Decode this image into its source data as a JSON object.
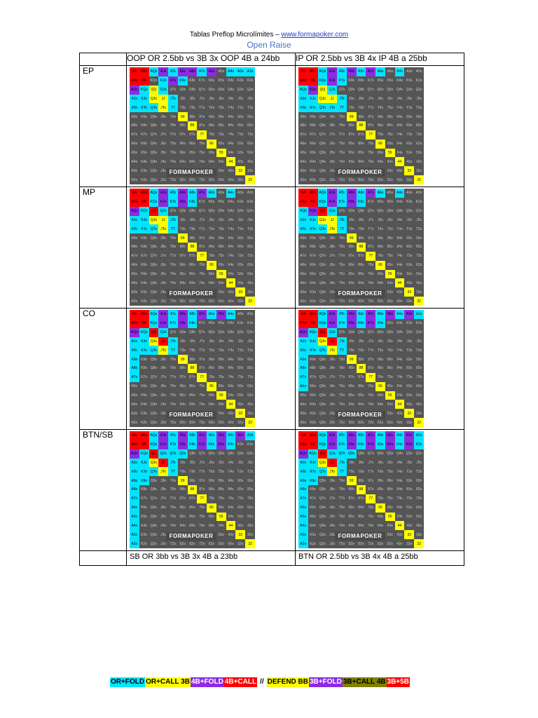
{
  "header": {
    "title": "Tablas Preflop Microlímites – ",
    "link": "www.formapoker.com"
  },
  "subtitle": "Open Raise",
  "columns": [
    "OOP OR 2.5bb vs 3B 3x OOP 4B a 24bb",
    "IP OR 2.5bb vs 3B 4x IP 4B a 25bb"
  ],
  "rows": [
    "EP",
    "MP",
    "CO",
    "BTN/SB"
  ],
  "bottom_captions": [
    "SB OR 3bb vs 3B 3x 4B a 23bb",
    "BTN OR 2.5bb vs 3B 4x 4B a 25bb"
  ],
  "watermark": "FORMAPOKER",
  "legend": [
    {
      "label": "OR+FOLD",
      "bg": "#00e5ff",
      "fg": "#000000"
    },
    {
      "label": "OR+CALL 3B",
      "bg": "#ffff00",
      "fg": "#000000"
    },
    {
      "label": "4B+FOLD",
      "bg": "#8b2be2",
      "fg": "#ffffff"
    },
    {
      "label": "4B+CALL",
      "bg": "#ff0000",
      "fg": "#ffffff"
    },
    {
      "label": "//",
      "bg": "",
      "fg": "#000000"
    },
    {
      "label": "DEFEND BB",
      "bg": "#ffff00",
      "fg": "#000000"
    },
    {
      "label": "3B+FOLD",
      "bg": "#8b2be2",
      "fg": "#ffffff"
    },
    {
      "label": "3B+CALL 4B",
      "bg": "#808000",
      "fg": "#000000"
    },
    {
      "label": "3B+5B",
      "bg": "#ff0000",
      "fg": "#ffffff"
    }
  ],
  "hand_grid": [
    [
      "AA",
      "AKs",
      "AQs",
      "AJs",
      "ATs",
      "A9s",
      "A8s",
      "A7s",
      "A6s",
      "A5s",
      "A4s",
      "A3s",
      "A2s"
    ],
    [
      "AKo",
      "KK",
      "KQs",
      "KJs",
      "KTs",
      "K9s",
      "K8s",
      "K7s",
      "K6s",
      "K5s",
      "K4s",
      "K3s",
      "K2s"
    ],
    [
      "AQo",
      "KQo",
      "QQ",
      "QJs",
      "QTs",
      "Q9s",
      "Q8s",
      "Q7s",
      "Q6s",
      "Q5s",
      "Q4s",
      "Q3s",
      "Q2s"
    ],
    [
      "AJo",
      "KJo",
      "QJo",
      "JJ",
      "JTs",
      "J9s",
      "J8s",
      "J7s",
      "J6s",
      "J5s",
      "J4s",
      "J3s",
      "J2s"
    ],
    [
      "ATo",
      "KTo",
      "QTo",
      "JTo",
      "TT",
      "T9s",
      "T8s",
      "T7s",
      "T6s",
      "T5s",
      "T4s",
      "T3s",
      "T2s"
    ],
    [
      "A9o",
      "K9o",
      "Q9o",
      "J9o",
      "T9o",
      "99",
      "98s",
      "97s",
      "96s",
      "95s",
      "94s",
      "93s",
      "92s"
    ],
    [
      "A8o",
      "K8o",
      "Q8o",
      "J8o",
      "T8o",
      "98o",
      "88",
      "87s",
      "86s",
      "85s",
      "84s",
      "83s",
      "82s"
    ],
    [
      "A7o",
      "K7o",
      "Q7o",
      "J7o",
      "T7o",
      "97o",
      "87o",
      "77",
      "76s",
      "75s",
      "74s",
      "73s",
      "72s"
    ],
    [
      "A6o",
      "K6o",
      "Q6o",
      "J6o",
      "T6o",
      "96o",
      "86o",
      "76o",
      "66",
      "65s",
      "64s",
      "63s",
      "62s"
    ],
    [
      "A5o",
      "K5o",
      "Q5o",
      "J5o",
      "T5o",
      "95o",
      "85o",
      "75o",
      "65o",
      "55",
      "54s",
      "53s",
      "52s"
    ],
    [
      "A4o",
      "K4o",
      "Q4o",
      "J4o",
      "T4o",
      "94o",
      "84o",
      "74o",
      "64o",
      "54o",
      "44",
      "43s",
      "42s"
    ],
    [
      "A3o",
      "K3o",
      "Q3o",
      "J3o",
      "T3o",
      "93o",
      "83o",
      "73o",
      "63o",
      "53o",
      "43o",
      "33",
      "32s"
    ],
    [
      "A2o",
      "K2o",
      "Q2o",
      "J2o",
      "T2o",
      "92o",
      "82o",
      "72o",
      "62o",
      "52o",
      "42o",
      "32o",
      "22"
    ]
  ],
  "charts": [
    [
      "rrcpcppcpbccc",
      "rrbcpcbbbbbbb",
      "pcycbbbbbbbbb",
      "ccyycbbbbbbbb",
      "cccycbbbbbbbb",
      "bbbbbybbbbbbb",
      "bbbbbbybbbbbb",
      "bbbbbbbybbbbb",
      "bbbbbbbbybbbb",
      "bbbbbbbbbybbb",
      "bbbbbbbbbbybb",
      "bbbbbbbbbbbyb",
      "bbbbbbbbbbbby"
    ],
    [
      "rrcpcpcpcbcbb",
      "rrcpcbbbbbbbb",
      "cpycbbbbbbbbb",
      "ccyycbbbbbbbb",
      "cccccbbbbbbbb",
      "bbbbbybbbbbbb",
      "bbbbbbybbbbbb",
      "bbbbbbbybbbbb",
      "bbbbbbbbybbbb",
      "bbbbbbbbbybbb",
      "bbbbbbbbbbybb",
      "bbbbbbbbbbbyb",
      "bbbbbbbbbbbby"
    ],
    [
      "rrcpcpcpcbcbb",
      "rrcpcpcbbbbbb",
      "pcrcbbbbbbbbb",
      "ccyycbbbbbbbb",
      "cccycbbbbbbbb",
      "bbbbbybbbbbbb",
      "bbbbbbybbbbbb",
      "bbbbbbbybbbbb",
      "bbbbbbbbybbbb",
      "bbbbbbbbbybbb",
      "bbbbbbbbbbybb",
      "bbbbbbbbbbbyb",
      "bbbbbbbbbbbby"
    ],
    [
      "rrcpcpcpcbcbb",
      "rrcpcpcbbbbbb",
      "cprcbbbbbbbbb",
      "ccyycbbbbbbbb",
      "cccycbbbbbbbb",
      "bbbbbybbbbbbb",
      "bbbbbbybbbbbb",
      "bbbbbbbybbbbb",
      "bbbbbbbbybbbb",
      "bbbbbbbbbybbb",
      "bbbbbbbbbbybb",
      "bbbbbbbbbbbyb",
      "bbbbbbbbbbbby"
    ],
    [
      "rrcpcpcpcpcbb",
      "rrcpcpcbbbbbb",
      "pcrcbbbbbbbbb",
      "ccyrcbbbbbbbb",
      "cccycbbbbbbbb",
      "cbbbbybbbbbbb",
      "cbbbbbybbbbbb",
      "cbbbbbbybbbbb",
      "bbbbbbbbybbbb",
      "bbbbbbbbbybbb",
      "bbbbbbbbbbybb",
      "bbbbbbbbbbbyb",
      "bbbbbbbbbbbby"
    ],
    [
      "rrcpcpcpcpcpc",
      "rrcpcpcpcbbbb",
      "pcrcbbbbbbbbb",
      "ccyrcbbbbbbbb",
      "cccycbbbbbbbb",
      "cbbbbybbbbbbb",
      "cbbbbbybbbbbb",
      "cbbbbbbybbbbb",
      "cbbbbbbbybbbb",
      "bbbbbbbbbybbb",
      "bbbbbbbbbbybb",
      "bbbbbbbbbbbyb",
      "bbbbbbbbbbbby"
    ],
    [
      "rrcpcpcpcpcpc",
      "rrcpcpcpcpcbb",
      "pcrcccbbbbbbb",
      "ccyrcbbbbbbbb",
      "cccycbbbbbbbb",
      "ccbbbybbbbbbb",
      "cbbbbbybbbbbb",
      "cbbbbbbybbbbb",
      "cbbbbbbbybbbb",
      "cbbbbbbbbybbb",
      "cbbbbbbbbbybb",
      "cbbbbbbbbbbyb",
      "cbbbbbbbbbbby"
    ],
    [
      "rrcpcpcpcpcpc",
      "rrcpcpcpcpcpc",
      "pcrcccbbbbbbb",
      "ccyrcbbbbbbbb",
      "cccycbbbbbbbb",
      "ccbbbybbbbbbb",
      "cbbbbbybbbbbb",
      "cbbbbbbybbbbb",
      "cbbbbbbbybbbb",
      "cbbbbbbbbybbb",
      "cbbbbbbbbbybb",
      "cbbbbbbbbbbyb",
      "cbbbbbbbbbbby"
    ]
  ]
}
